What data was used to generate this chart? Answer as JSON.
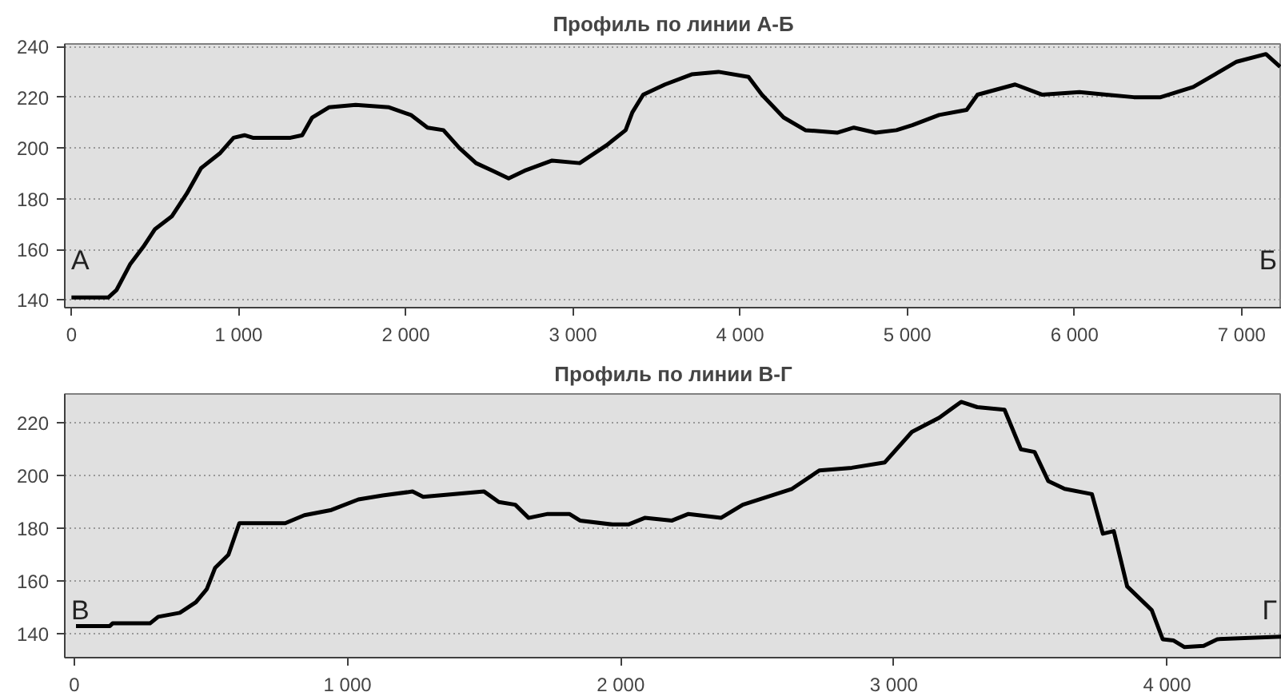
{
  "chart_data": [
    {
      "type": "line",
      "title": "Профиль по линии А-Б",
      "grid": "y",
      "marker": "none",
      "line_style": "solid",
      "xlim": [
        -40,
        7240
      ],
      "ylim": [
        137,
        241
      ],
      "xticks": [
        0,
        {
          "value": 1000,
          "label": "1 000"
        },
        {
          "value": 2000,
          "label": "2 000"
        },
        {
          "value": 3000,
          "label": "3 000"
        },
        {
          "value": 4000,
          "label": "4 000"
        },
        {
          "value": 5000,
          "label": "5 000"
        },
        {
          "value": 6000,
          "label": "6 000"
        },
        {
          "value": 7000,
          "label": "7 000"
        }
      ],
      "yticks": [
        140,
        160,
        180,
        200,
        220,
        240
      ],
      "annotations": [
        "А",
        "Б"
      ],
      "series": [
        {
          "color": "#000000",
          "x": [
            0,
            220,
            270,
            350,
            430,
            500,
            600,
            690,
            775,
            890,
            970,
            1035,
            1085,
            1310,
            1380,
            1440,
            1540,
            1700,
            1900,
            2030,
            2130,
            2225,
            2320,
            2420,
            2520,
            2615,
            2710,
            2875,
            3040,
            3200,
            3315,
            3355,
            3420,
            3550,
            3710,
            3870,
            4050,
            4130,
            4260,
            4390,
            4580,
            4680,
            4810,
            4935,
            5030,
            5190,
            5355,
            5420,
            5645,
            5805,
            6030,
            6190,
            6355,
            6515,
            6710,
            6840,
            6970,
            7145,
            7230
          ],
          "values": [
            141,
            141,
            144,
            154,
            161,
            168,
            173,
            182,
            192,
            198,
            204,
            205,
            204,
            204,
            205,
            212,
            216,
            217,
            216,
            213,
            208,
            207,
            200,
            194,
            191,
            188,
            191,
            195,
            194,
            201,
            207,
            214,
            221,
            225,
            229,
            230,
            228,
            221,
            212,
            207,
            206,
            208,
            206,
            207,
            209,
            213,
            215,
            221,
            225,
            221,
            222,
            221,
            220,
            220,
            224,
            229,
            234,
            237,
            232
          ]
        }
      ]
    },
    {
      "type": "line",
      "title": "Профиль по линии В-Г",
      "grid": "y",
      "marker": "none",
      "line_style": "solid",
      "xlim": [
        -35,
        4420
      ],
      "ylim": [
        131,
        231
      ],
      "xticks": [
        0,
        {
          "value": 1000,
          "label": "1 000"
        },
        {
          "value": 2000,
          "label": "2 000"
        },
        {
          "value": 3000,
          "label": "3 000"
        },
        {
          "value": 4000,
          "label": "4 000"
        }
      ],
      "yticks": [
        140,
        160,
        180,
        200,
        220
      ],
      "annotations": [
        "В",
        "Г"
      ],
      "series": [
        {
          "color": "#000000",
          "x": [
            6,
            130,
            140,
            277,
            307,
            386,
            445,
            485,
            515,
            564,
            604,
            772,
            842,
            941,
            1040,
            1129,
            1238,
            1277,
            1500,
            1554,
            1614,
            1663,
            1733,
            1812,
            1851,
            1970,
            2028,
            2088,
            2188,
            2248,
            2367,
            2447,
            2627,
            2727,
            2846,
            2966,
            3066,
            3166,
            3246,
            3305,
            3405,
            3465,
            3515,
            3565,
            3625,
            3725,
            3765,
            3805,
            3854,
            3944,
            3984,
            4024,
            4064,
            4134,
            4184,
            4420
          ],
          "values": [
            143,
            143,
            144,
            144,
            146.5,
            148,
            152,
            157,
            165,
            170,
            182,
            182,
            185,
            187,
            191,
            192.5,
            194,
            192,
            194,
            190,
            189,
            184,
            185.5,
            185.5,
            183,
            181.5,
            181.5,
            184,
            183,
            185.5,
            184,
            189,
            195,
            202,
            203,
            205,
            216.6,
            222,
            228,
            226,
            225,
            210,
            209,
            198,
            195,
            193,
            178,
            179,
            158,
            149,
            138,
            137.5,
            135,
            135.5,
            138,
            139
          ]
        }
      ]
    }
  ]
}
